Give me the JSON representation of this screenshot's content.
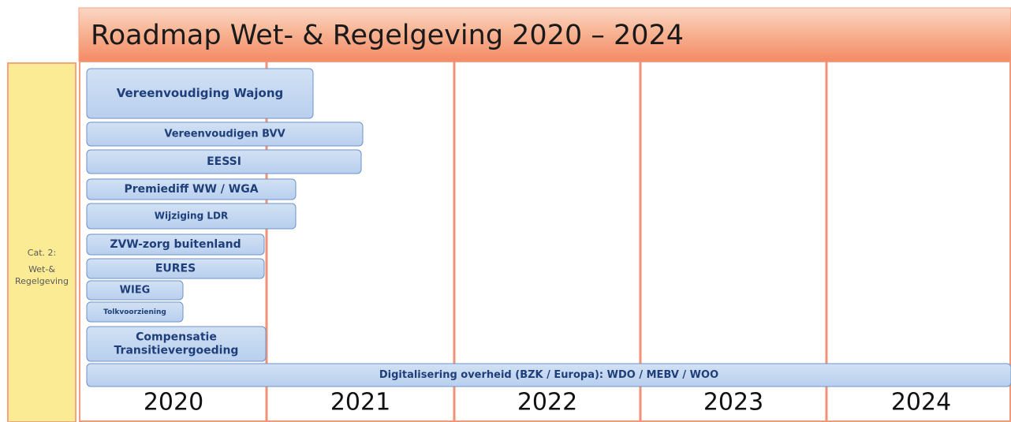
{
  "header": {
    "title": "Roadmap Wet- & Regelgeving 2020 – 2024"
  },
  "category": {
    "lines": [
      "Cat. 2:",
      "Wet-&",
      "Regelgeving"
    ]
  },
  "items": [
    {
      "lines": [
        "Vereenvoudiging Wajong"
      ]
    },
    {
      "lines": [
        "Vereenvoudigen BVV"
      ]
    },
    {
      "lines": [
        "EESSI"
      ]
    },
    {
      "lines": [
        "Premiediff WW / WGA"
      ]
    },
    {
      "lines": [
        "Wijziging LDR"
      ]
    },
    {
      "lines": [
        "ZVW-zorg buitenland"
      ]
    },
    {
      "lines": [
        "EURES"
      ]
    },
    {
      "lines": [
        "WIEG"
      ]
    },
    {
      "lines": [
        "Tolkvoorziening"
      ]
    },
    {
      "lines": [
        "Compensatie",
        "Transitievergoeding"
      ]
    },
    {
      "lines": [
        "Digitalisering overheid (BZK / Europa): WDO / MEBV / WOO"
      ]
    }
  ],
  "years": [
    "2020",
    "2021",
    "2022",
    "2023",
    "2024"
  ]
}
